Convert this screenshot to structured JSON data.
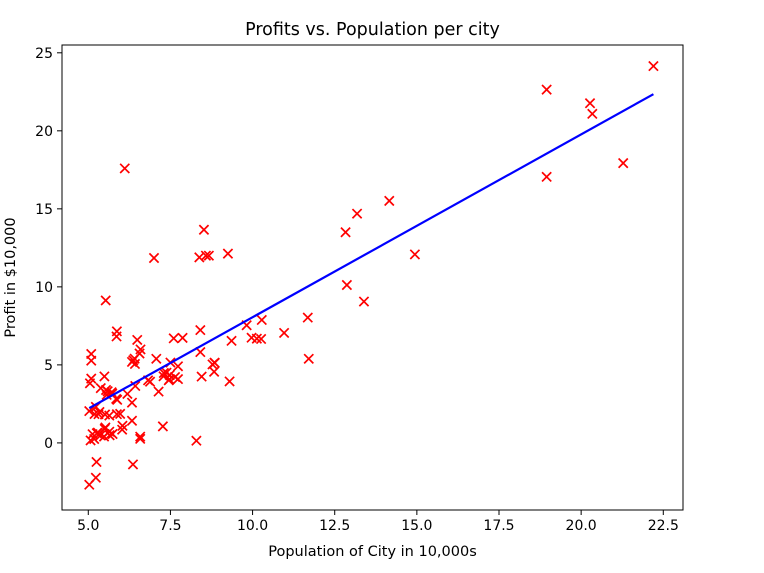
{
  "chart_data": {
    "type": "scatter",
    "title": "Profits vs. Population per city",
    "xlabel": "Population of City in 10,000s",
    "ylabel": "Profit in $10,000",
    "xlim": [
      4.2,
      23.1
    ],
    "ylim": [
      -4.3,
      25.5
    ],
    "xticks": [
      5.0,
      7.5,
      10.0,
      12.5,
      15.0,
      17.5,
      20.0,
      22.5
    ],
    "yticks": [
      0,
      5,
      10,
      15,
      20,
      25
    ],
    "xtick_labels": [
      "5.0",
      "7.5",
      "10.0",
      "12.5",
      "15.0",
      "17.5",
      "20.0",
      "22.5"
    ],
    "ytick_labels": [
      "0",
      "5",
      "10",
      "15",
      "20",
      "25"
    ],
    "grid": false,
    "legend": false,
    "series": [
      {
        "kind": "scatter",
        "marker": "x",
        "color": "#ff0000",
        "points": [
          [
            6.11,
            17.59
          ],
          [
            5.53,
            9.13
          ],
          [
            8.52,
            13.66
          ],
          [
            7.0,
            11.85
          ],
          [
            5.86,
            6.82
          ],
          [
            8.38,
            11.89
          ],
          [
            7.48,
            4.35
          ],
          [
            8.58,
            12.0
          ],
          [
            6.49,
            6.6
          ],
          [
            5.05,
            3.82
          ],
          [
            5.71,
            3.25
          ],
          [
            14.16,
            15.51
          ],
          [
            5.73,
            3.16
          ],
          [
            8.41,
            7.23
          ],
          [
            5.64,
            0.72
          ],
          [
            5.38,
            3.51
          ],
          [
            6.37,
            5.3
          ],
          [
            5.13,
            0.56
          ],
          [
            6.43,
            3.65
          ],
          [
            7.07,
            5.39
          ],
          [
            6.19,
            3.14
          ],
          [
            20.27,
            21.77
          ],
          [
            5.49,
            4.26
          ],
          [
            6.33,
            5.19
          ],
          [
            5.56,
            3.08
          ],
          [
            18.95,
            22.64
          ],
          [
            12.83,
            13.5
          ],
          [
            10.96,
            7.05
          ],
          [
            13.18,
            14.69
          ],
          [
            22.2,
            24.15
          ],
          [
            5.25,
            -1.22
          ],
          [
            6.59,
            5.99
          ],
          [
            9.25,
            12.13
          ],
          [
            5.19,
            1.85
          ],
          [
            9.36,
            6.54
          ],
          [
            8.83,
            4.56
          ],
          [
            5.09,
            4.12
          ],
          [
            5.54,
            3.39
          ],
          [
            7.87,
            6.73
          ],
          [
            5.31,
            1.84
          ],
          [
            8.29,
            0.14
          ],
          [
            13.39,
            9.06
          ],
          [
            6.58,
            0.4
          ],
          [
            7.6,
            6.7
          ],
          [
            6.04,
            1.1
          ],
          [
            6.41,
            5.4
          ],
          [
            7.5,
            5.15
          ],
          [
            6.33,
            1.42
          ],
          [
            5.34,
            1.98
          ],
          [
            5.87,
            1.84
          ],
          [
            7.3,
            4.48
          ],
          [
            8.41,
            5.82
          ],
          [
            5.18,
            0.25
          ],
          [
            6.42,
            5.06
          ],
          [
            10.26,
            6.66
          ],
          [
            7.47,
            4.07
          ],
          [
            8.84,
            5.14
          ],
          [
            7.38,
            4.5
          ],
          [
            5.52,
            0.99
          ],
          [
            9.97,
            6.74
          ],
          [
            5.97,
            1.86
          ],
          [
            9.82,
            7.54
          ],
          [
            6.03,
            0.85
          ],
          [
            8.85,
            5.13
          ],
          [
            5.65,
            0.49
          ],
          [
            5.23,
            -2.23
          ],
          [
            10.13,
            6.68
          ],
          [
            5.03,
            -2.68
          ],
          [
            7.73,
            4.91
          ],
          [
            8.78,
            5.03
          ],
          [
            5.26,
            0.62
          ],
          [
            5.23,
            2.31
          ],
          [
            7.14,
            3.29
          ],
          [
            8.45,
            4.25
          ],
          [
            5.88,
            2.76
          ],
          [
            5.74,
            0.57
          ],
          [
            6.82,
            4.01
          ],
          [
            5.48,
            0.41
          ],
          [
            6.36,
            -1.38
          ],
          [
            7.27,
            1.06
          ],
          [
            8.67,
            12.0
          ],
          [
            5.64,
            1.75
          ],
          [
            6.58,
            0.26
          ],
          [
            6.33,
            2.58
          ],
          [
            9.3,
            3.94
          ],
          [
            5.03,
            2.04
          ],
          [
            5.51,
            1.82
          ],
          [
            5.37,
            0.48
          ],
          [
            6.88,
            3.92
          ],
          [
            7.45,
            4.01
          ],
          [
            7.29,
            4.27
          ],
          [
            5.29,
            0.66
          ],
          [
            7.64,
            4.22
          ],
          [
            5.5,
            0.9
          ],
          [
            11.71,
            5.39
          ],
          [
            5.59,
            3.31
          ],
          [
            5.85,
            2.82
          ],
          [
            5.07,
            0.16
          ],
          [
            6.56,
            5.73
          ],
          [
            7.73,
            4.09
          ],
          [
            5.09,
            5.7
          ],
          [
            10.28,
            7.88
          ],
          [
            5.87,
            7.15
          ],
          [
            5.09,
            5.27
          ],
          [
            11.68,
            8.03
          ],
          [
            12.87,
            10.12
          ],
          [
            14.94,
            12.08
          ],
          [
            18.95,
            17.05
          ],
          [
            20.34,
            21.09
          ],
          [
            21.28,
            17.93
          ]
        ]
      },
      {
        "kind": "line",
        "color": "#0000ff",
        "points": [
          [
            5.03,
            2.23
          ],
          [
            22.2,
            22.35
          ]
        ]
      }
    ]
  }
}
